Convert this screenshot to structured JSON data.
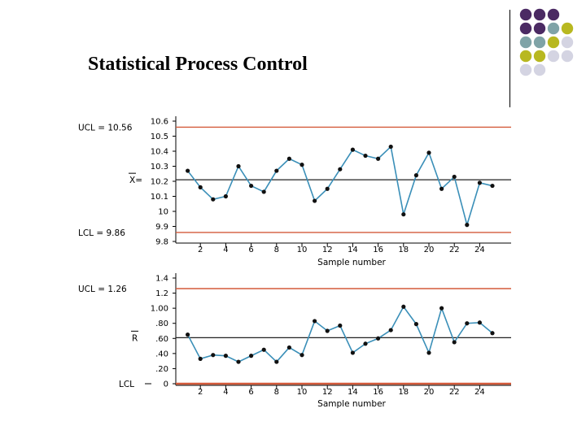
{
  "slide": {
    "title": "Statistical Process Control",
    "dot_colors": {
      "purple": "#4b2a63",
      "teal": "#7fa3a7",
      "olive": "#b8b820",
      "lavender": "#d4d4e2"
    },
    "dot_grid": [
      [
        "purple",
        "purple",
        "purple",
        null,
        null
      ],
      [
        "purple",
        "purple",
        "teal",
        "olive",
        null
      ],
      [
        "teal",
        "teal",
        "olive",
        "lavender",
        null
      ],
      [
        "olive",
        "olive",
        "lavender",
        "lavender",
        null
      ],
      [
        "lavender",
        "lavender",
        null,
        null,
        null
      ]
    ]
  },
  "chart_data": [
    {
      "type": "line",
      "name": "xbar-chart",
      "x": [
        1,
        2,
        3,
        4,
        5,
        6,
        7,
        8,
        9,
        10,
        11,
        12,
        13,
        14,
        15,
        16,
        17,
        18,
        19,
        20,
        21,
        22,
        23,
        24,
        25
      ],
      "values": [
        10.27,
        10.16,
        10.08,
        10.1,
        10.3,
        10.17,
        10.13,
        10.27,
        10.35,
        10.31,
        10.07,
        10.15,
        10.28,
        10.41,
        10.37,
        10.35,
        10.43,
        9.98,
        10.24,
        10.39,
        10.15,
        10.23,
        9.91,
        10.19,
        10.17
      ],
      "xlim": [
        0,
        26
      ],
      "ylim": [
        9.8,
        10.6
      ],
      "yticks": [
        9.8,
        9.9,
        10,
        10.1,
        10.2,
        10.3,
        10.4,
        10.5,
        10.6
      ],
      "ytick_labels": [
        "9.8",
        "9.9",
        "10",
        "10.1",
        "10.2",
        "10.3",
        "10.4",
        "10.5",
        "10.6"
      ],
      "xticks": [
        2,
        4,
        6,
        8,
        10,
        12,
        14,
        16,
        18,
        20,
        22,
        24
      ],
      "xtick_labels": [
        "2",
        "4",
        "6",
        "8",
        "10",
        "12",
        "14",
        "16",
        "18",
        "20",
        "22",
        "24"
      ],
      "xlabel": "Sample number",
      "ucl": {
        "value": 10.56,
        "label": "UCL = 10.56"
      },
      "center": {
        "value": 10.21,
        "label": "X="
      },
      "lcl": {
        "value": 9.86,
        "label": "LCL = 9.86"
      },
      "colors": {
        "line": "#3a8fb8",
        "marker": "#111111",
        "limit": "#d45a3a",
        "center": "#222222"
      }
    },
    {
      "type": "line",
      "name": "r-chart",
      "x": [
        1,
        2,
        3,
        4,
        5,
        6,
        7,
        8,
        9,
        10,
        11,
        12,
        13,
        14,
        15,
        16,
        17,
        18,
        19,
        20,
        21,
        22,
        23,
        24,
        25
      ],
      "values": [
        0.65,
        0.33,
        0.38,
        0.37,
        0.29,
        0.37,
        0.45,
        0.29,
        0.48,
        0.38,
        0.83,
        0.7,
        0.77,
        0.41,
        0.53,
        0.6,
        0.71,
        1.02,
        0.79,
        0.41,
        1.0,
        0.55,
        0.8,
        0.81,
        0.67
      ],
      "xlim": [
        0,
        26
      ],
      "ylim": [
        0,
        1.4
      ],
      "yticks": [
        0,
        0.2,
        0.4,
        0.6,
        0.8,
        1.0,
        1.2,
        1.4
      ],
      "ytick_labels": [
        "0",
        ".20",
        ".40",
        ".60",
        ".80",
        "1.00",
        "1.2",
        "1.4"
      ],
      "xticks": [
        2,
        4,
        6,
        8,
        10,
        12,
        14,
        16,
        18,
        20,
        22,
        24
      ],
      "xtick_labels": [
        "2",
        "4",
        "6",
        "8",
        "10",
        "12",
        "14",
        "16",
        "18",
        "20",
        "22",
        "24"
      ],
      "xlabel": "Sample number",
      "ucl": {
        "value": 1.26,
        "label": "UCL = 1.26"
      },
      "center": {
        "value": 0.61,
        "label": "R"
      },
      "lcl": {
        "value": 0,
        "label": "LCL"
      },
      "colors": {
        "line": "#3a8fb8",
        "marker": "#111111",
        "limit": "#d45a3a",
        "center": "#222222"
      }
    }
  ]
}
